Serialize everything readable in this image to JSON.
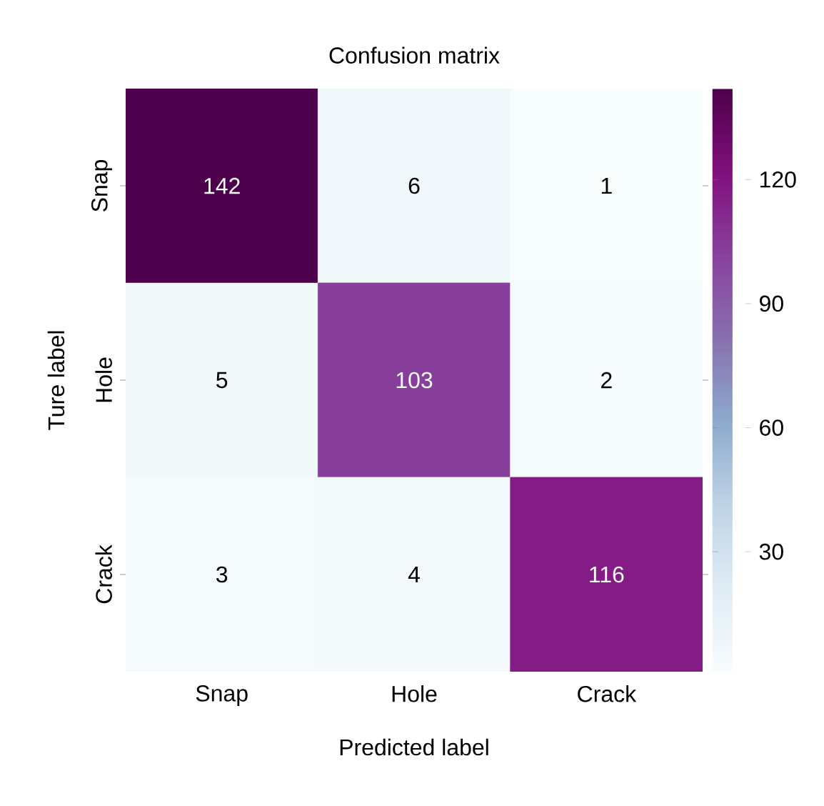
{
  "chart_data": {
    "type": "heatmap",
    "title": "Confusion matrix",
    "xlabel": "Predicted label",
    "ylabel": "Ture label",
    "categories": [
      "Snap",
      "Hole",
      "Crack"
    ],
    "y_categories": [
      "Snap",
      "Hole",
      "Crack"
    ],
    "cells": [
      [
        142,
        6,
        1
      ],
      [
        5,
        103,
        2
      ],
      [
        3,
        4,
        116
      ]
    ],
    "data_labels": true,
    "clim": [
      1,
      142
    ],
    "cticks": [
      30,
      60,
      90,
      120
    ]
  }
}
